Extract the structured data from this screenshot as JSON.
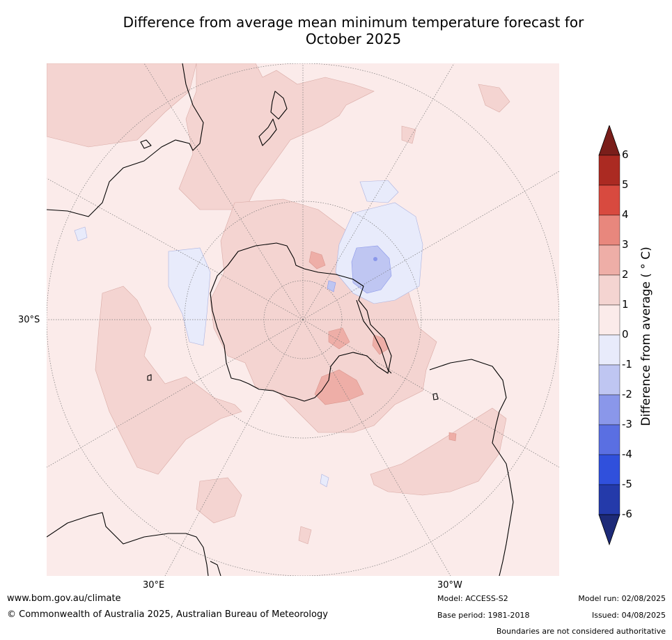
{
  "title": {
    "line1": "Difference from average mean minimum temperature forecast for",
    "line2": "October 2025"
  },
  "map": {
    "projection": "south-polar-stereographic",
    "labels": {
      "lat_30s": "30°S",
      "lon_30e": "30°E",
      "lon_30w": "30°W"
    },
    "colors": {
      "land_outline": "#000000",
      "ocean_background": "#fbebea",
      "graticule": "#777777"
    }
  },
  "colorbar": {
    "label": "Difference from average ( ° C)",
    "ticks": [
      "6",
      "5",
      "4",
      "3",
      "2",
      "1",
      "0",
      "-1",
      "-2",
      "-3",
      "-4",
      "-5",
      "-6"
    ],
    "bins": [
      {
        "range": "above 6",
        "color": "#7a1e1a"
      },
      {
        "range": "5 to 6",
        "color": "#ab2a22"
      },
      {
        "range": "4 to 5",
        "color": "#d84a3f"
      },
      {
        "range": "3 to 4",
        "color": "#e8877d"
      },
      {
        "range": "2 to 3",
        "color": "#eeaea7"
      },
      {
        "range": "1 to 2",
        "color": "#f4d4d1"
      },
      {
        "range": "0 to 1",
        "color": "#fbebea"
      },
      {
        "range": "-1 to 0",
        "color": "#e8ebfb"
      },
      {
        "range": "-2 to -1",
        "color": "#bfc6f2"
      },
      {
        "range": "-3 to -2",
        "color": "#8a97ea"
      },
      {
        "range": "-4 to -3",
        "color": "#5a6fe2"
      },
      {
        "range": "-5 to -4",
        "color": "#3050dc"
      },
      {
        "range": "-6 to -5",
        "color": "#243aaa"
      },
      {
        "range": "below -6",
        "color": "#1d2a78"
      }
    ]
  },
  "footer": {
    "url": "www.bom.gov.au/climate",
    "copyright": "© Commonwealth of Australia 2025, Australian Bureau of Meteorology",
    "model": "Model: ACCESS-S2",
    "base_period": "Base period: 1981-2018",
    "model_run": "Model run: 02/08/2025",
    "issued": "Issued: 04/08/2025",
    "disclaimer": "Boundaries are not considered authoritative"
  }
}
